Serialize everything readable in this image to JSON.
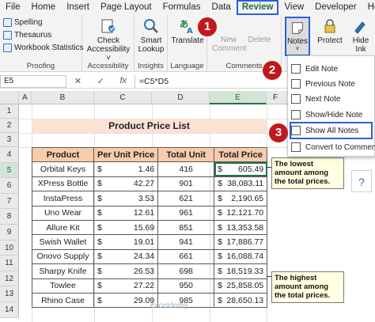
{
  "menu": {
    "tabs": [
      "File",
      "Home",
      "Insert",
      "Page Layout",
      "Formulas",
      "Data",
      "Review",
      "View",
      "Developer",
      "Help"
    ],
    "active_tab": "Review"
  },
  "ribbon": {
    "proofing": {
      "label": "Proofing",
      "items": [
        "Spelling",
        "Thesaurus",
        "Workbook Statistics"
      ]
    },
    "accessibility": {
      "label": "Accessibility",
      "button": "Check Accessibility ˅"
    },
    "insights": {
      "label": "Insights",
      "button": "Smart Lookup"
    },
    "language": {
      "label": "Language",
      "button": "Translate"
    },
    "comments": {
      "label": "Comments",
      "new_comment": "New Comment",
      "delete": "Delete"
    },
    "notes": {
      "button": "Notes"
    },
    "protect": {
      "button": "Protect"
    },
    "hide_ink": {
      "button": "Hide Ink"
    }
  },
  "formula_bar": {
    "name_box": "E5",
    "formula": "=C5*D5",
    "cancel": "✕",
    "enter": "✓",
    "fx": "fx"
  },
  "columns": [
    "A",
    "B",
    "C",
    "D",
    "E",
    "F"
  ],
  "rows": [
    "1",
    "2",
    "3",
    "4",
    "5",
    "6",
    "7",
    "8",
    "9",
    "10",
    "11",
    "12",
    "13",
    "14"
  ],
  "sheet": {
    "title": "Product Price List",
    "headers": [
      "Product",
      "Per Unit Price",
      "Total Unit",
      "Total Price"
    ],
    "currency": "$",
    "data": [
      [
        "Orbital Keys",
        "1.46",
        "416",
        "605.49"
      ],
      [
        "XPress Bottle",
        "42.27",
        "901",
        "38,083.11"
      ],
      [
        "InstaPress",
        "3.53",
        "621",
        "2,190.65"
      ],
      [
        "Uno Wear",
        "12.61",
        "961",
        "12,121.70"
      ],
      [
        "Allure Kit",
        "15.69",
        "851",
        "13,353.58"
      ],
      [
        "Swish Wallet",
        "19.01",
        "941",
        "17,886.77"
      ],
      [
        "Onovo Supply",
        "24.34",
        "661",
        "16,088.74"
      ],
      [
        "Sharpy Knife",
        "26.53",
        "698",
        "18,519.33"
      ],
      [
        "Towlee",
        "27.22",
        "950",
        "25,858.05"
      ],
      [
        "Rhino Case",
        "29.09",
        "985",
        "28,650.13"
      ]
    ]
  },
  "notes": {
    "lowest": "The lowest amount among the total prices.",
    "highest": "The highest amount among the total prices."
  },
  "dropdown": {
    "items": [
      "Edit Note",
      "Previous Note",
      "Next Note",
      "Show/Hide Note",
      "Show All Notes",
      "Convert to Comments"
    ],
    "highlighted": "Show All Notes"
  },
  "badges": [
    "1",
    "2",
    "3"
  ],
  "watermark": "exceldemy",
  "colors": {
    "excel_green": "#217346",
    "title_fill": "#fbe2d5",
    "header_fill": "#f8cbad",
    "note_fill": "#ffffe1",
    "highlight_blue": "#2c5fd8",
    "badge_red": "#c0191d"
  }
}
